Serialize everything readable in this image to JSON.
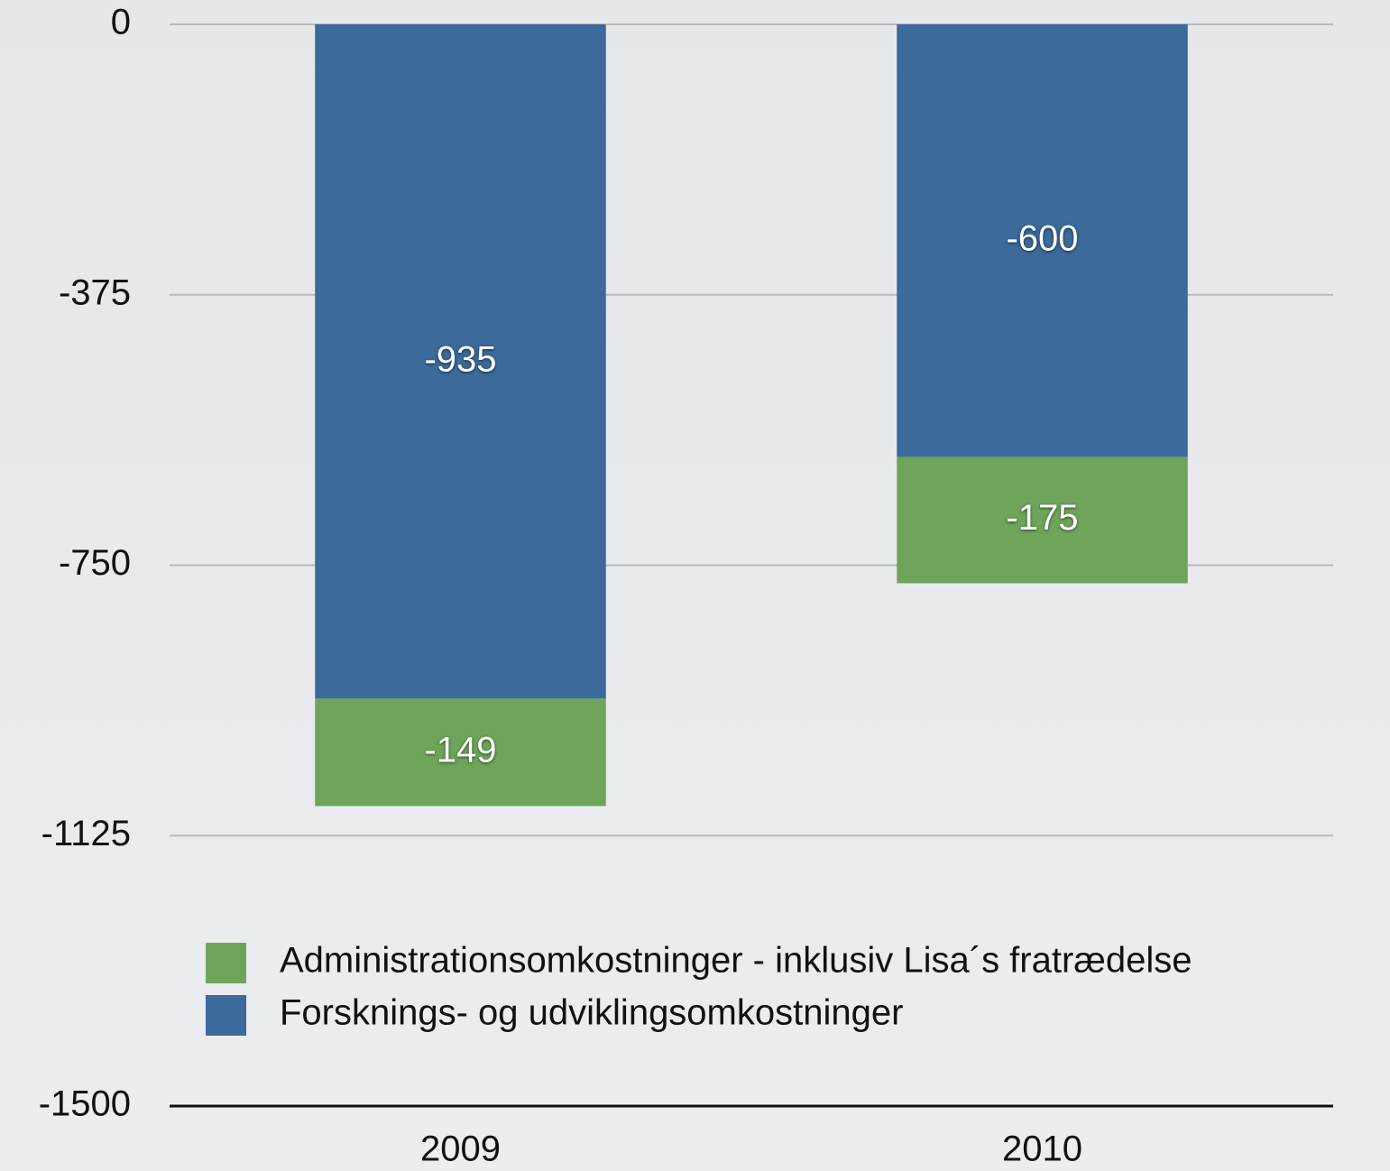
{
  "chart_data": {
    "type": "stacked_bar",
    "categories": [
      "2009",
      "2010"
    ],
    "series": [
      {
        "name": "Forsknings- og udviklingsomkostninger",
        "color": "#3b6a9b",
        "values": [
          -935,
          -600
        ]
      },
      {
        "name": "Administrationsomkostninger - inklusiv Lisa´s fratrædelse",
        "color": "#6ea55a",
        "values": [
          -149,
          -175
        ]
      }
    ],
    "ylim": [
      -1500,
      0
    ],
    "yticks": [
      0,
      -375,
      -750,
      -1125,
      -1500
    ],
    "grid": true
  }
}
